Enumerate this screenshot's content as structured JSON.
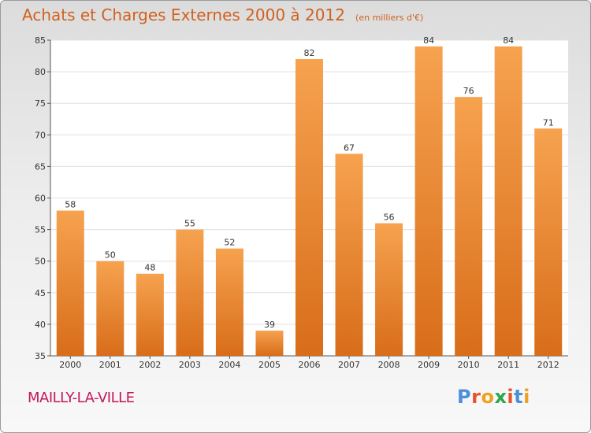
{
  "chart_data": {
    "type": "bar",
    "title": "Achats et Charges Externes 2000 à 2012",
    "subtitle": "(en milliers d'€)",
    "categories": [
      "2000",
      "2001",
      "2002",
      "2003",
      "2004",
      "2005",
      "2006",
      "2007",
      "2008",
      "2009",
      "2010",
      "2011",
      "2012"
    ],
    "values": [
      58,
      50,
      48,
      55,
      52,
      39,
      82,
      67,
      56,
      84,
      76,
      84,
      71
    ],
    "ylim": [
      35,
      85
    ],
    "yticks": [
      35,
      40,
      45,
      50,
      55,
      60,
      65,
      70,
      75,
      80,
      85
    ],
    "grid": true,
    "bar_color": "#f0923a"
  },
  "footer": {
    "commune": "MAILLY-LA-VILLE",
    "logo_letters": [
      "P",
      "r",
      "o",
      "x",
      "i",
      "t",
      "i"
    ],
    "logo_colors": [
      "#4a90d9",
      "#e8532a",
      "#f0a020",
      "#2aa84a",
      "#e8532a",
      "#4a90d9",
      "#f0a020"
    ]
  }
}
